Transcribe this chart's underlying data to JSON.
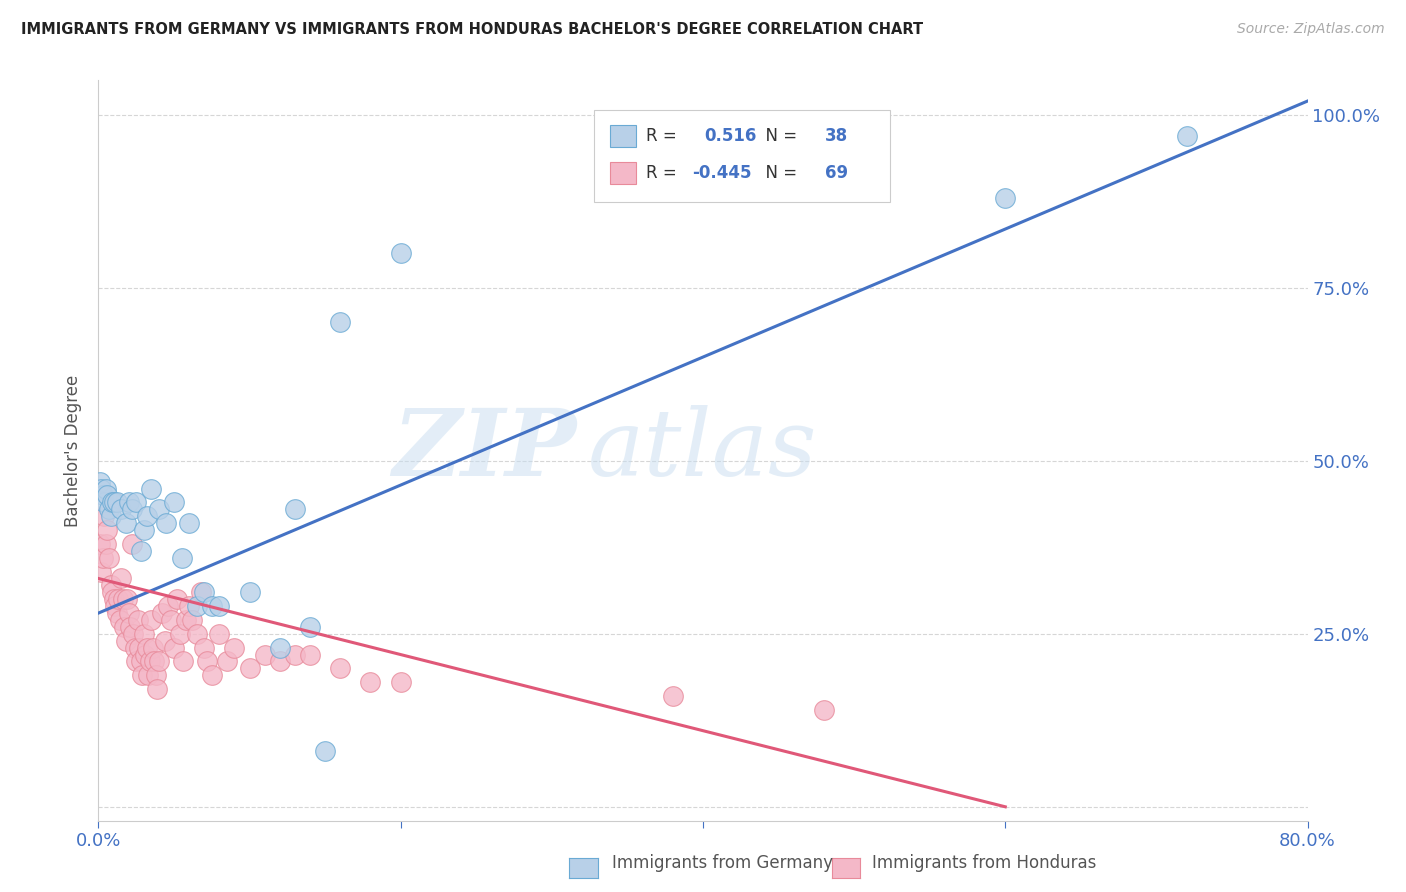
{
  "title": "IMMIGRANTS FROM GERMANY VS IMMIGRANTS FROM HONDURAS BACHELOR'S DEGREE CORRELATION CHART",
  "source": "Source: ZipAtlas.com",
  "ylabel": "Bachelor's Degree",
  "y_ticks": [
    0.0,
    0.25,
    0.5,
    0.75,
    1.0
  ],
  "y_tick_labels": [
    "",
    "25.0%",
    "50.0%",
    "75.0%",
    "100.0%"
  ],
  "watermark_zip": "ZIP",
  "watermark_atlas": "atlas",
  "legend": {
    "germany_R": "0.516",
    "germany_N": "38",
    "honduras_R": "-0.445",
    "honduras_N": "69"
  },
  "germany_color": "#b8d0e8",
  "germany_edge_color": "#6aaad4",
  "germany_line_color": "#4472c4",
  "honduras_color": "#f4b8c8",
  "honduras_edge_color": "#e88a9a",
  "honduras_line_color": "#e05878",
  "background_color": "#ffffff",
  "grid_color": "#cccccc",
  "blue_scatter": [
    [
      0.001,
      0.47
    ],
    [
      0.002,
      0.46
    ],
    [
      0.003,
      0.45
    ],
    [
      0.004,
      0.44
    ],
    [
      0.005,
      0.46
    ],
    [
      0.006,
      0.45
    ],
    [
      0.007,
      0.43
    ],
    [
      0.008,
      0.42
    ],
    [
      0.009,
      0.44
    ],
    [
      0.01,
      0.44
    ],
    [
      0.012,
      0.44
    ],
    [
      0.015,
      0.43
    ],
    [
      0.018,
      0.41
    ],
    [
      0.02,
      0.44
    ],
    [
      0.022,
      0.43
    ],
    [
      0.025,
      0.44
    ],
    [
      0.028,
      0.37
    ],
    [
      0.03,
      0.4
    ],
    [
      0.032,
      0.42
    ],
    [
      0.035,
      0.46
    ],
    [
      0.04,
      0.43
    ],
    [
      0.045,
      0.41
    ],
    [
      0.05,
      0.44
    ],
    [
      0.055,
      0.36
    ],
    [
      0.06,
      0.41
    ],
    [
      0.065,
      0.29
    ],
    [
      0.07,
      0.31
    ],
    [
      0.075,
      0.29
    ],
    [
      0.08,
      0.29
    ],
    [
      0.1,
      0.31
    ],
    [
      0.12,
      0.23
    ],
    [
      0.13,
      0.43
    ],
    [
      0.14,
      0.26
    ],
    [
      0.15,
      0.08
    ],
    [
      0.16,
      0.7
    ],
    [
      0.2,
      0.8
    ],
    [
      0.6,
      0.88
    ],
    [
      0.72,
      0.97
    ]
  ],
  "pink_scatter": [
    [
      0.001,
      0.38
    ],
    [
      0.002,
      0.34
    ],
    [
      0.003,
      0.36
    ],
    [
      0.004,
      0.42
    ],
    [
      0.005,
      0.38
    ],
    [
      0.006,
      0.4
    ],
    [
      0.007,
      0.36
    ],
    [
      0.008,
      0.32
    ],
    [
      0.009,
      0.31
    ],
    [
      0.01,
      0.3
    ],
    [
      0.011,
      0.29
    ],
    [
      0.012,
      0.28
    ],
    [
      0.013,
      0.3
    ],
    [
      0.014,
      0.27
    ],
    [
      0.015,
      0.33
    ],
    [
      0.016,
      0.3
    ],
    [
      0.017,
      0.26
    ],
    [
      0.018,
      0.24
    ],
    [
      0.019,
      0.3
    ],
    [
      0.02,
      0.28
    ],
    [
      0.021,
      0.26
    ],
    [
      0.022,
      0.38
    ],
    [
      0.023,
      0.25
    ],
    [
      0.024,
      0.23
    ],
    [
      0.025,
      0.21
    ],
    [
      0.026,
      0.27
    ],
    [
      0.027,
      0.23
    ],
    [
      0.028,
      0.21
    ],
    [
      0.029,
      0.19
    ],
    [
      0.03,
      0.25
    ],
    [
      0.031,
      0.22
    ],
    [
      0.032,
      0.23
    ],
    [
      0.033,
      0.19
    ],
    [
      0.034,
      0.21
    ],
    [
      0.035,
      0.27
    ],
    [
      0.036,
      0.23
    ],
    [
      0.037,
      0.21
    ],
    [
      0.038,
      0.19
    ],
    [
      0.039,
      0.17
    ],
    [
      0.04,
      0.21
    ],
    [
      0.042,
      0.28
    ],
    [
      0.044,
      0.24
    ],
    [
      0.046,
      0.29
    ],
    [
      0.048,
      0.27
    ],
    [
      0.05,
      0.23
    ],
    [
      0.052,
      0.3
    ],
    [
      0.054,
      0.25
    ],
    [
      0.056,
      0.21
    ],
    [
      0.058,
      0.27
    ],
    [
      0.06,
      0.29
    ],
    [
      0.062,
      0.27
    ],
    [
      0.065,
      0.25
    ],
    [
      0.068,
      0.31
    ],
    [
      0.07,
      0.23
    ],
    [
      0.072,
      0.21
    ],
    [
      0.075,
      0.19
    ],
    [
      0.08,
      0.25
    ],
    [
      0.085,
      0.21
    ],
    [
      0.09,
      0.23
    ],
    [
      0.1,
      0.2
    ],
    [
      0.11,
      0.22
    ],
    [
      0.12,
      0.21
    ],
    [
      0.13,
      0.22
    ],
    [
      0.14,
      0.22
    ],
    [
      0.16,
      0.2
    ],
    [
      0.18,
      0.18
    ],
    [
      0.2,
      0.18
    ],
    [
      0.38,
      0.16
    ],
    [
      0.48,
      0.14
    ]
  ],
  "xlim": [
    0.0,
    0.8
  ],
  "ylim": [
    -0.02,
    1.05
  ],
  "germany_line_x": [
    0.0,
    0.8
  ],
  "germany_line_y": [
    0.28,
    1.02
  ],
  "honduras_line_x": [
    0.0,
    0.6
  ],
  "honduras_line_y": [
    0.33,
    0.0
  ]
}
